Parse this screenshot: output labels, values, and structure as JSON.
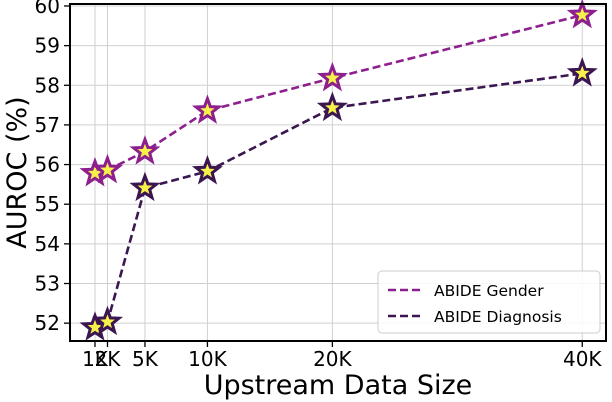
{
  "chart_data": {
    "type": "line",
    "title": "",
    "xlabel": "Upstream Data Size",
    "ylabel": "AUROC (%)",
    "x": [
      1000,
      2000,
      5000,
      10000,
      20000,
      40000
    ],
    "x_tick_labels": [
      "1K",
      "2K",
      "5K",
      "10K",
      "20K",
      "40K"
    ],
    "ylim": [
      51.55,
      60.05
    ],
    "y_ticks": [
      52,
      53,
      54,
      55,
      56,
      57,
      58,
      59,
      60
    ],
    "grid": true,
    "legend_position": "bottom-right",
    "series": [
      {
        "name": "ABIDE Gender",
        "color": "#8e1f8f",
        "marker": "star",
        "values": [
          55.78,
          55.86,
          56.33,
          57.36,
          58.18,
          59.77
        ]
      },
      {
        "name": "ABIDE Diagnosis",
        "color": "#3b1650",
        "marker": "star",
        "values": [
          51.89,
          52.03,
          55.41,
          55.83,
          57.43,
          58.3
        ]
      }
    ]
  }
}
